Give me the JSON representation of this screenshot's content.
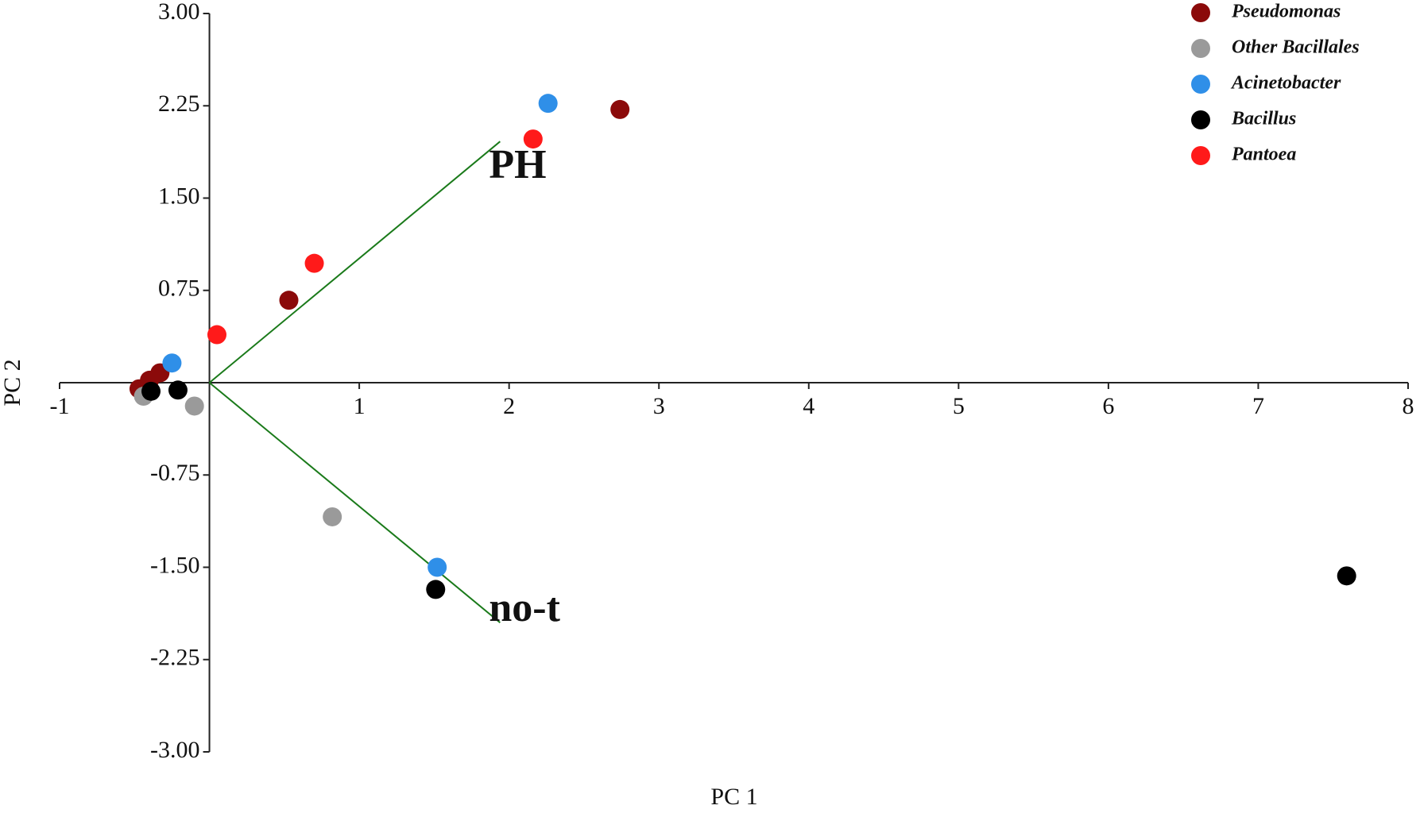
{
  "chart_data": {
    "type": "scatter",
    "xlabel": "PC 1",
    "ylabel": "PC 2",
    "xlim": [
      -1,
      8
    ],
    "ylim": [
      -3,
      3
    ],
    "xticks": [
      -1,
      1,
      2,
      3,
      4,
      5,
      6,
      7,
      8
    ],
    "yticks": [
      {
        "value": 3,
        "label": "3.00"
      },
      {
        "value": 2.25,
        "label": "2.25"
      },
      {
        "value": 1.5,
        "label": "1.50"
      },
      {
        "value": 0.75,
        "label": "0.75"
      },
      {
        "value": -0.75,
        "label": "-0.75"
      },
      {
        "value": -1.5,
        "label": "-1.50"
      },
      {
        "value": -2.25,
        "label": "-2.25"
      },
      {
        "value": -3,
        "label": "-3.00"
      }
    ],
    "legend": "upper right",
    "series": [
      {
        "name": "Pseudomonas",
        "color": "#8b0a0a",
        "x": [
          2.74,
          0.53,
          -0.33,
          -0.4,
          -0.47
        ],
        "values": [
          2.22,
          0.67,
          0.08,
          0.02,
          -0.05
        ]
      },
      {
        "name": "Other Bacillales",
        "color": "#9a9a9a",
        "x": [
          0.82,
          -0.1,
          -0.44
        ],
        "values": [
          -1.09,
          -0.19,
          -0.11
        ]
      },
      {
        "name": "Acinetobacter",
        "color": "#2f8fe8",
        "x": [
          2.26,
          -0.25,
          1.52
        ],
        "values": [
          2.27,
          0.16,
          -1.5
        ]
      },
      {
        "name": "Bacillus",
        "color": "#000000",
        "x": [
          7.59,
          1.51,
          -0.21,
          -0.39
        ],
        "values": [
          -1.57,
          -1.68,
          -0.06,
          -0.07
        ]
      },
      {
        "name": "Pantoea",
        "color": "#ff1a1a",
        "x": [
          2.16,
          0.7,
          0.05
        ],
        "values": [
          1.98,
          0.97,
          0.39
        ]
      }
    ],
    "vectors": [
      {
        "label": "PH",
        "color": "#1a7a1a",
        "x": 1.94,
        "y": 1.96
      },
      {
        "label": "no-t",
        "color": "#1a7a1a",
        "x": 1.94,
        "y": -1.95
      }
    ]
  }
}
